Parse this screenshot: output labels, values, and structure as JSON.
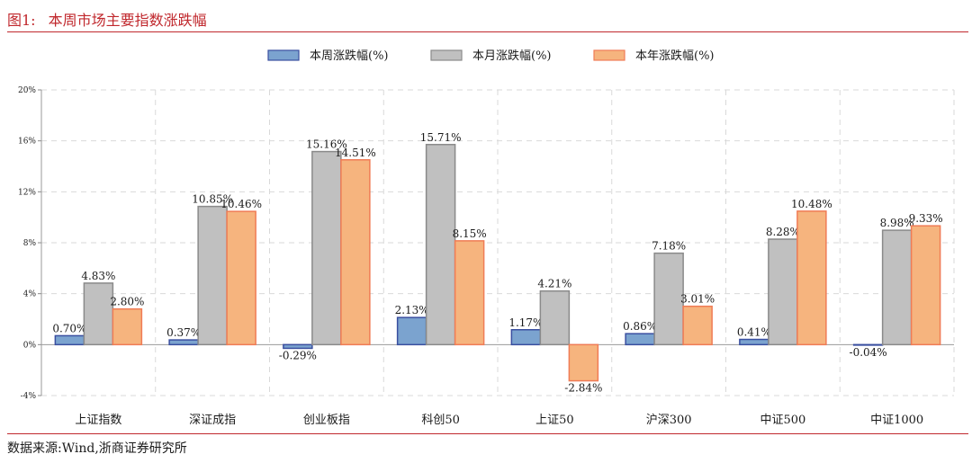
{
  "figure": {
    "number": "图1:",
    "title": "本周市场主要指数涨跌幅",
    "source": "数据来源:Wind,浙商证券研究所"
  },
  "chart_data": {
    "type": "bar",
    "categories": [
      "上证指数",
      "深证成指",
      "创业板指",
      "科创50",
      "上证50",
      "沪深300",
      "中证500",
      "中证1000"
    ],
    "series": [
      {
        "name": "本周涨跌幅(%)",
        "values": [
          0.7,
          0.37,
          -0.29,
          2.13,
          1.17,
          0.86,
          0.41,
          -0.04
        ],
        "labels": [
          "0.70%",
          "0.37%",
          "-0.29%",
          "2.13%",
          "1.17%",
          "0.86%",
          "0.41%",
          "-0.04%"
        ],
        "fill": "#7ba3cf",
        "stroke": "#3a4fa0"
      },
      {
        "name": "本月涨跌幅(%)",
        "values": [
          4.83,
          10.85,
          15.16,
          15.71,
          4.21,
          7.18,
          8.28,
          8.98
        ],
        "labels": [
          "4.83%",
          "10.85%",
          "15.16%",
          "15.71%",
          "4.21%",
          "7.18%",
          "8.28%",
          "8.98%"
        ],
        "fill": "#c0c0c0",
        "stroke": "#8a8a8a"
      },
      {
        "name": "本年涨跌幅(%)",
        "values": [
          2.8,
          10.46,
          14.51,
          8.15,
          -2.84,
          3.01,
          10.48,
          9.33
        ],
        "labels": [
          "2.80%",
          "10.46%",
          "14.51%",
          "8.15%",
          "-2.84%",
          "3.01%",
          "10.48%",
          "9.33%"
        ],
        "fill": "#f6b47e",
        "stroke": "#f07c56"
      }
    ],
    "yticks": [
      20,
      16,
      12,
      8,
      4,
      0,
      -4
    ],
    "ytick_labels": [
      "20%",
      "16%",
      "12%",
      "8%",
      "4%",
      "0%",
      "-4%"
    ],
    "ylim": [
      -4,
      20
    ],
    "grid": true,
    "legend_position": "top-center"
  }
}
